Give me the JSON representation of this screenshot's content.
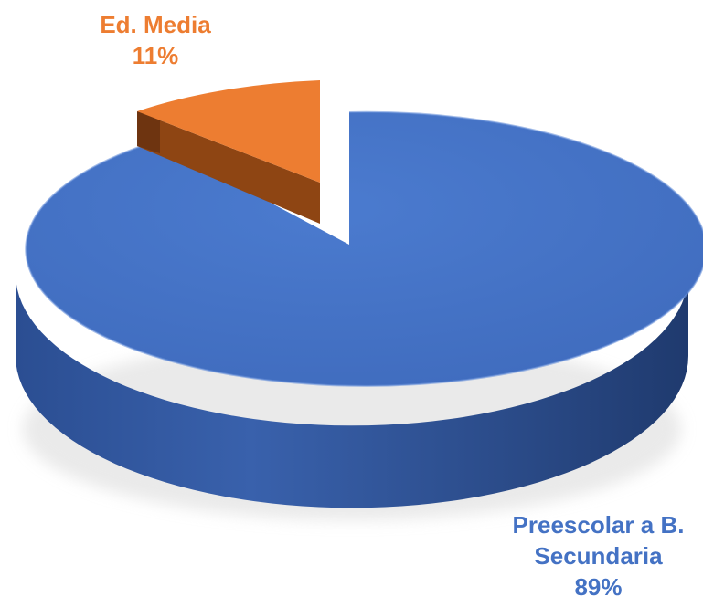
{
  "chart_data": {
    "type": "pie",
    "style": "3d-exploded",
    "title": "",
    "categories": [
      "Ed. Media",
      "Preescolar a B. Secundaria"
    ],
    "values": [
      11,
      89
    ],
    "labels": [
      {
        "lines": [
          "Ed. Media"
        ],
        "value_text": "11%"
      },
      {
        "lines": [
          "Preescolar a B.",
          "Secundaria"
        ],
        "value_text": "89%"
      }
    ],
    "colors": [
      "#ED7D31",
      "#4472C4"
    ],
    "side_colors": [
      "#9A4A12",
      "#2A4D8F"
    ],
    "legend": "none"
  }
}
